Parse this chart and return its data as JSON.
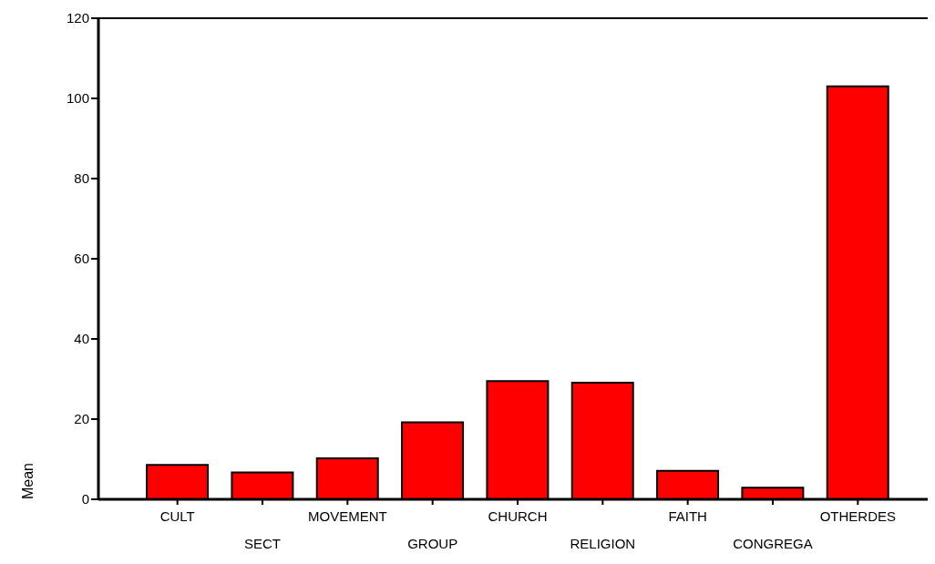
{
  "chart_data": {
    "type": "bar",
    "ylabel": "Mean",
    "categories": [
      "CULT",
      "SECT",
      "MOVEMENT",
      "GROUP",
      "CHURCH",
      "RELIGION",
      "FAITH",
      "CONGREGA",
      "OTHERDES"
    ],
    "series": [
      {
        "color": "#ff0000",
        "values": [
          8.6,
          6.7,
          10.2,
          19.2,
          29.5,
          29.1,
          7.1,
          2.9,
          103
        ]
      }
    ],
    "ylim": [
      0,
      120
    ],
    "yticks": [
      0,
      20,
      40,
      60,
      80,
      100,
      120
    ],
    "grid": false,
    "legend": false
  }
}
